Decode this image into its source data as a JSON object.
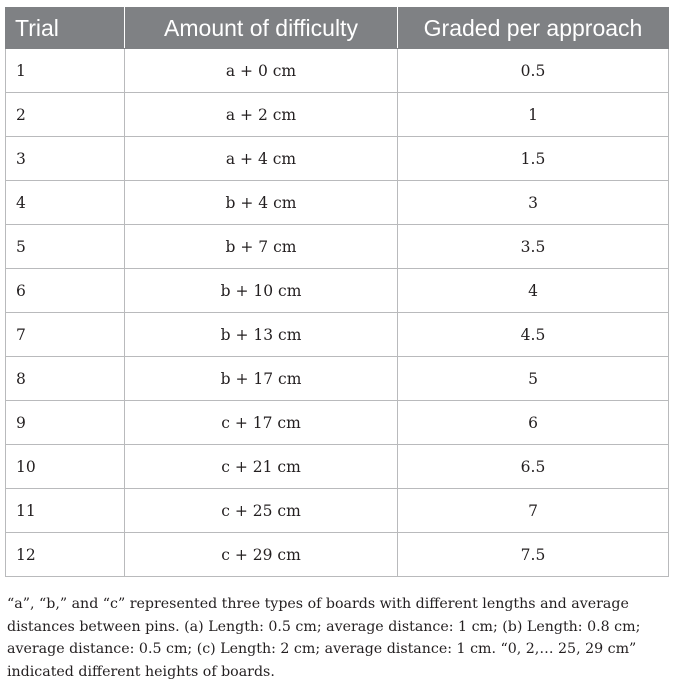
{
  "table": {
    "headers": [
      "Trial",
      "Amount of difficulty",
      "Graded per approach"
    ],
    "rows": [
      [
        "1",
        "a + 0 cm",
        "0.5"
      ],
      [
        "2",
        "a + 2 cm",
        "1"
      ],
      [
        "3",
        "a + 4 cm",
        "1.5"
      ],
      [
        "4",
        "b + 4 cm",
        "3"
      ],
      [
        "5",
        "b + 7 cm",
        "3.5"
      ],
      [
        "6",
        "b + 10 cm",
        "4"
      ],
      [
        "7",
        "b + 13 cm",
        "4.5"
      ],
      [
        "8",
        "b + 17 cm",
        "5"
      ],
      [
        "9",
        "c + 17 cm",
        "6"
      ],
      [
        "10",
        "c + 21 cm",
        "6.5"
      ],
      [
        "11",
        "c + 25 cm",
        "7"
      ],
      [
        "12",
        "c + 29 cm",
        "7.5"
      ]
    ]
  },
  "footnote": "“a”, “b,” and “c” represented three types of boards with different lengths and average distances between pins. (a) Length: 0.5 cm; average distance: 1 cm; (b) Length: 0.8 cm; average distance: 0.5 cm; (c) Length: 2 cm; average distance: 1 cm. “0, 2,… 25, 29 cm” indicated different heights of boards."
}
